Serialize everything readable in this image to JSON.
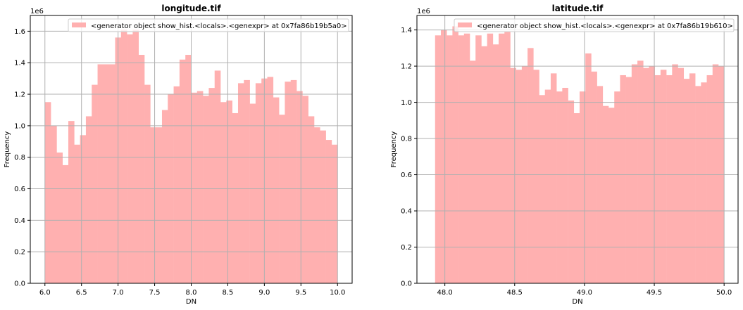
{
  "chart_data": [
    {
      "type": "bar",
      "title": "longitude.tif",
      "xlabel": "DN",
      "ylabel": "Frequency",
      "y_scale_label": "1e6",
      "xlim": [
        5.8,
        10.2
      ],
      "ylim": [
        0,
        1.7
      ],
      "xticks": [
        "6.0",
        "6.5",
        "7.0",
        "7.5",
        "8.0",
        "8.5",
        "9.0",
        "9.5",
        "10.0"
      ],
      "yticks": [
        "0.0",
        "0.2",
        "0.4",
        "0.6",
        "0.8",
        "1.0",
        "1.2",
        "1.4",
        "1.6"
      ],
      "grid": true,
      "legend_placement": "top-right",
      "bin_start": 6.0,
      "bin_end": 10.0,
      "color": "#ffb0b0",
      "series": [
        {
          "name": "<generator object show_hist.<locals>.<genexpr> at 0x7fa86b19b5a0>",
          "values": [
            1.15,
            1.0,
            0.83,
            0.75,
            1.03,
            0.88,
            0.94,
            1.06,
            1.26,
            1.39,
            1.39,
            1.39,
            1.56,
            1.61,
            1.58,
            1.61,
            1.45,
            1.26,
            0.99,
            0.99,
            1.1,
            1.2,
            1.25,
            1.42,
            1.45,
            1.21,
            1.22,
            1.19,
            1.24,
            1.35,
            1.15,
            1.16,
            1.08,
            1.27,
            1.29,
            1.14,
            1.27,
            1.3,
            1.31,
            1.18,
            1.07,
            1.28,
            1.29,
            1.22,
            1.19,
            1.06,
            0.99,
            0.97,
            0.91,
            0.88
          ]
        }
      ]
    },
    {
      "type": "bar",
      "title": "latitude.tif",
      "xlabel": "DN",
      "ylabel": "Frequency",
      "y_scale_label": "1e6",
      "xlim": [
        47.8,
        50.1
      ],
      "ylim": [
        0,
        1.48
      ],
      "xticks": [
        "48.0",
        "48.5",
        "49.0",
        "49.5",
        "50.0"
      ],
      "yticks": [
        "0.0",
        "0.2",
        "0.4",
        "0.6",
        "0.8",
        "1.0",
        "1.2",
        "1.4"
      ],
      "grid": true,
      "legend_placement": "top-right",
      "bin_start": 47.93,
      "bin_end": 50.0,
      "color": "#ffb0b0",
      "series": [
        {
          "name": "<generator object show_hist.<locals>.<genexpr> at 0x7fa86b19b610>",
          "values": [
            1.37,
            1.4,
            1.37,
            1.42,
            1.37,
            1.38,
            1.23,
            1.37,
            1.31,
            1.38,
            1.32,
            1.38,
            1.39,
            1.19,
            1.18,
            1.2,
            1.3,
            1.18,
            1.04,
            1.07,
            1.16,
            1.06,
            1.08,
            1.01,
            0.94,
            1.06,
            1.27,
            1.17,
            1.09,
            0.98,
            0.97,
            1.06,
            1.15,
            1.14,
            1.21,
            1.23,
            1.19,
            1.2,
            1.15,
            1.18,
            1.15,
            1.21,
            1.19,
            1.13,
            1.16,
            1.09,
            1.11,
            1.15,
            1.21,
            1.2
          ]
        }
      ]
    }
  ]
}
